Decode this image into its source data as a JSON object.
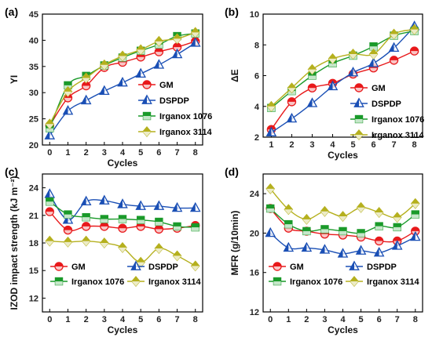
{
  "chart_data": [
    {
      "panel": "(a)",
      "type": "line",
      "xlabel": "Cycles",
      "ylabel": "YI",
      "x": [
        0,
        1,
        2,
        3,
        4,
        5,
        6,
        7,
        8
      ],
      "xlim": [
        -0.4,
        8.4
      ],
      "ylim": [
        20,
        45
      ],
      "xticks": [
        0,
        1,
        2,
        3,
        4,
        5,
        6,
        7,
        8
      ],
      "yticks": [
        20,
        25,
        30,
        35,
        40,
        45
      ],
      "legend_position": "bottom-right",
      "series": [
        {
          "name": "GM",
          "color": "#e8191b",
          "marker": "circle",
          "values": [
            23.7,
            29.0,
            31.3,
            34.8,
            35.8,
            36.8,
            37.8,
            38.7,
            39.8
          ]
        },
        {
          "name": "DSPDP",
          "color": "#1a4fb5",
          "marker": "triangle",
          "values": [
            21.8,
            26.5,
            28.5,
            30.3,
            31.9,
            33.6,
            35.3,
            37.3,
            39.5
          ]
        },
        {
          "name": "Irganox 1076",
          "color": "#1a9a2a",
          "marker": "square",
          "values": [
            23.2,
            31.4,
            33.2,
            35.2,
            36.7,
            38.0,
            39.2,
            40.8,
            41.3
          ]
        },
        {
          "name": "Irganox 3114",
          "color": "#b5b01e",
          "marker": "diamond",
          "values": [
            24.0,
            30.2,
            32.8,
            35.3,
            37.0,
            38.2,
            39.8,
            40.3,
            41.5
          ]
        }
      ]
    },
    {
      "panel": "(b)",
      "type": "line",
      "xlabel": "Cycles",
      "ylabel": "ΔE",
      "x": [
        1,
        2,
        3,
        4,
        5,
        6,
        7,
        8
      ],
      "xlim": [
        0.6,
        8.4
      ],
      "ylim": [
        2,
        10
      ],
      "xticks": [
        1,
        2,
        3,
        4,
        5,
        6,
        7,
        8
      ],
      "yticks": [
        2,
        4,
        6,
        8,
        10
      ],
      "legend_position": "bottom-right",
      "series": [
        {
          "name": "GM",
          "color": "#e8191b",
          "marker": "circle",
          "values": [
            2.5,
            4.3,
            5.2,
            5.5,
            6.1,
            6.5,
            7.0,
            7.6
          ]
        },
        {
          "name": "DSPDP",
          "color": "#1a4fb5",
          "marker": "triangle",
          "values": [
            2.3,
            3.2,
            4.2,
            5.3,
            6.2,
            6.8,
            7.8,
            9.2
          ]
        },
        {
          "name": "Irganox 1076",
          "color": "#1a9a2a",
          "marker": "square",
          "values": [
            3.9,
            5.0,
            6.0,
            6.8,
            7.3,
            7.9,
            8.6,
            8.9
          ]
        },
        {
          "name": "Irganox 3114",
          "color": "#b5b01e",
          "marker": "diamond",
          "values": [
            4.0,
            5.2,
            6.4,
            7.1,
            7.4,
            7.4,
            8.7,
            9.0
          ]
        }
      ]
    },
    {
      "panel": "(c)",
      "type": "line",
      "xlabel": "Cycles",
      "ylabel": "IZOD impact strength (kJ m⁻²)",
      "x": [
        0,
        1,
        2,
        3,
        4,
        5,
        6,
        7,
        8
      ],
      "xlim": [
        -0.4,
        8.4
      ],
      "ylim": [
        10.5,
        25.5
      ],
      "xticks": [
        0,
        1,
        2,
        3,
        4,
        5,
        6,
        7,
        8
      ],
      "yticks": [
        12,
        15,
        18,
        21,
        24
      ],
      "legend_position": "bottom",
      "series": [
        {
          "name": "GM",
          "color": "#e8191b",
          "marker": "circle",
          "values": [
            21.4,
            19.4,
            19.8,
            19.8,
            19.6,
            19.8,
            19.5,
            19.6,
            19.9
          ]
        },
        {
          "name": "DSPDP",
          "color": "#1a4fb5",
          "marker": "triangle",
          "values": [
            23.3,
            20.5,
            22.5,
            22.6,
            22.2,
            22.0,
            22.0,
            21.8,
            21.8
          ]
        },
        {
          "name": "Irganox 1076",
          "color": "#1a9a2a",
          "marker": "square",
          "values": [
            22.5,
            21.1,
            20.8,
            20.6,
            20.6,
            20.5,
            20.3,
            19.8,
            19.7
          ]
        },
        {
          "name": "Irganox 3114",
          "color": "#b5b01e",
          "marker": "diamond",
          "values": [
            18.2,
            18.1,
            18.2,
            18.0,
            17.5,
            15.9,
            17.4,
            16.6,
            15.5
          ]
        }
      ]
    },
    {
      "panel": "(d)",
      "type": "line",
      "xlabel": "Cycles",
      "ylabel": "MFR (g/10min)",
      "x": [
        0,
        1,
        2,
        3,
        4,
        5,
        6,
        7,
        8
      ],
      "xlim": [
        -0.4,
        8.4
      ],
      "ylim": [
        12,
        26
      ],
      "xticks": [
        0,
        1,
        2,
        3,
        4,
        5,
        6,
        7,
        8
      ],
      "yticks": [
        12,
        16,
        20,
        24
      ],
      "legend_position": "bottom",
      "series": [
        {
          "name": "GM",
          "color": "#e8191b",
          "marker": "circle",
          "values": [
            22.5,
            20.5,
            20.2,
            19.9,
            19.8,
            19.6,
            19.2,
            19.2,
            20.2
          ]
        },
        {
          "name": "DSPDP",
          "color": "#1a4fb5",
          "marker": "triangle",
          "values": [
            20.0,
            18.5,
            18.5,
            18.3,
            17.9,
            18.2,
            18.0,
            18.7,
            19.6
          ]
        },
        {
          "name": "Irganox 1076",
          "color": "#1a9a2a",
          "marker": "square",
          "values": [
            22.5,
            20.9,
            20.2,
            20.4,
            20.2,
            20.0,
            20.7,
            20.6,
            21.9
          ]
        },
        {
          "name": "Irganox 3114",
          "color": "#b5b01e",
          "marker": "diamond",
          "values": [
            24.5,
            22.4,
            21.4,
            22.2,
            21.7,
            22.6,
            22.1,
            21.6,
            23.0
          ]
        }
      ]
    }
  ]
}
